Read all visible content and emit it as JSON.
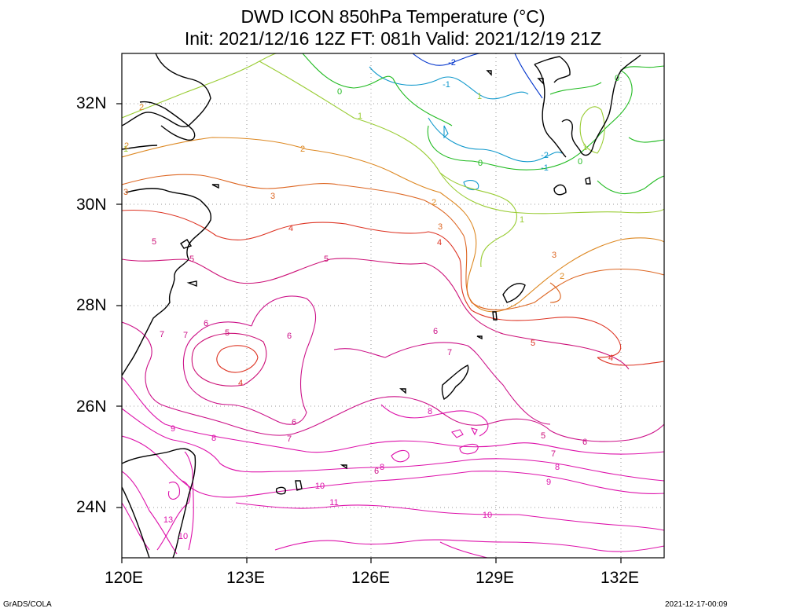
{
  "title_line1": "DWD ICON 850hPa Temperature (°C)",
  "title_line2": "Init: 2021/12/16 12Z  FT: 081h  Valid: 2021/12/19 21Z",
  "lon_labels": [
    "120E",
    "123E",
    "126E",
    "129E",
    "132E"
  ],
  "lat_labels": [
    "32N",
    "30N",
    "28N",
    "26N",
    "24N"
  ],
  "footer_left": "GrADS/COLA",
  "footer_right": "2021-12-17-00:09",
  "colors": {
    "m2": "#0033cc",
    "m1": "#1199cc",
    "c0": "#22bb22",
    "c1": "#99cc33",
    "c2": "#dd8822",
    "c3": "#dd6622",
    "c4": "#dd3322",
    "c5": "#cc1177",
    "c6": "#cc1188",
    "hi": "#dd11aa",
    "coast": "#000000",
    "grid": "#999999"
  },
  "contour_labels": [
    {
      "text": "-2",
      "c": "m2"
    },
    {
      "text": "-1",
      "c": "m1"
    },
    {
      "text": "0",
      "c": "c0"
    },
    {
      "text": "1",
      "c": "c1"
    },
    {
      "text": "2",
      "c": "c2"
    },
    {
      "text": "3",
      "c": "c3"
    },
    {
      "text": "-2",
      "c": "m1"
    },
    {
      "text": "-1",
      "c": "m1"
    },
    {
      "text": "0",
      "c": "c0"
    },
    {
      "text": "1",
      "c": "c1"
    },
    {
      "text": "2",
      "c": "c2"
    },
    {
      "text": "3",
      "c": "c3"
    },
    {
      "text": "4",
      "c": "c4"
    },
    {
      "text": "5",
      "c": "c5"
    },
    {
      "text": "5",
      "c": "c5"
    },
    {
      "text": "4",
      "c": "c4"
    },
    {
      "text": "3",
      "c": "c3"
    },
    {
      "text": "2",
      "c": "c2"
    },
    {
      "text": "1",
      "c": "c1"
    },
    {
      "text": "0",
      "c": "c0"
    },
    {
      "text": "1",
      "c": "c1"
    },
    {
      "text": "2",
      "c": "c2"
    },
    {
      "text": "3",
      "c": "c3"
    },
    {
      "text": "4",
      "c": "c4"
    },
    {
      "text": "5",
      "c": "c5"
    },
    {
      "text": "6",
      "c": "c6"
    },
    {
      "text": "7",
      "c": "c6"
    },
    {
      "text": "6",
      "c": "c6"
    },
    {
      "text": "5",
      "c": "c4"
    },
    {
      "text": "4",
      "c": "c4"
    },
    {
      "text": "6",
      "c": "c6"
    },
    {
      "text": "7",
      "c": "c6"
    },
    {
      "text": "8",
      "c": "hi"
    },
    {
      "text": "9",
      "c": "hi"
    },
    {
      "text": "8",
      "c": "hi"
    },
    {
      "text": "7",
      "c": "c6"
    },
    {
      "text": "6",
      "c": "c6"
    },
    {
      "text": "5",
      "c": "c5"
    },
    {
      "text": "6",
      "c": "c6"
    },
    {
      "text": "7",
      "c": "c6"
    },
    {
      "text": "8",
      "c": "hi"
    },
    {
      "text": "9",
      "c": "hi"
    },
    {
      "text": "8",
      "c": "hi"
    },
    {
      "text": "10",
      "c": "hi"
    },
    {
      "text": "11",
      "c": "hi"
    },
    {
      "text": "10",
      "c": "hi"
    },
    {
      "text": "13",
      "c": "hi"
    },
    {
      "text": "10",
      "c": "hi"
    },
    {
      "text": "1",
      "c": "c1"
    },
    {
      "text": "0",
      "c": "c0"
    },
    {
      "text": "2",
      "c": "c2"
    },
    {
      "text": "7",
      "c": "c6"
    },
    {
      "text": "5",
      "c": "c5"
    },
    {
      "text": "6",
      "c": "c6"
    }
  ]
}
